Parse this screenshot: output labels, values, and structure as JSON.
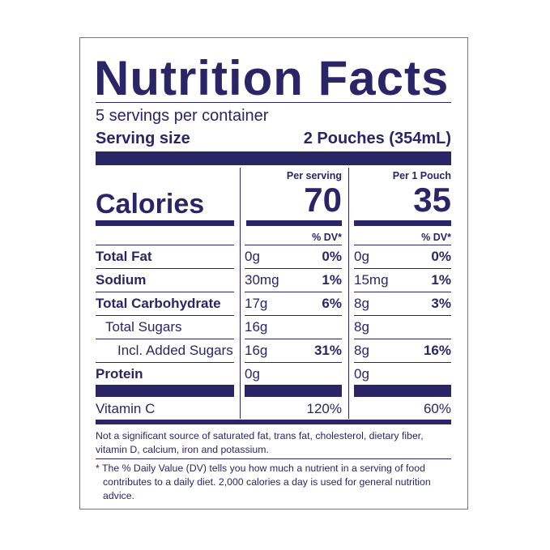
{
  "title": "Nutrition Facts",
  "servings": "5 servings per container",
  "serving_size": {
    "label": "Serving size",
    "value": "2 Pouches (354mL)"
  },
  "calories_label": "Calories",
  "columns": [
    {
      "heading": "Per serving",
      "calories": "70"
    },
    {
      "heading": "Per 1 Pouch",
      "calories": "35"
    }
  ],
  "dv_header": "% DV*",
  "rows": [
    {
      "name": "Total Fat",
      "bold": true,
      "indent": 0,
      "cells": [
        [
          "0g",
          "0%"
        ],
        [
          "0g",
          "0%"
        ]
      ]
    },
    {
      "name": "Sodium",
      "bold": true,
      "indent": 0,
      "cells": [
        [
          "30mg",
          "1%"
        ],
        [
          "15mg",
          "1%"
        ]
      ]
    },
    {
      "name": "Total Carbohydrate",
      "bold": true,
      "indent": 0,
      "cells": [
        [
          "17g",
          "6%"
        ],
        [
          "8g",
          "3%"
        ]
      ]
    },
    {
      "name": "Total Sugars",
      "bold": false,
      "indent": 1,
      "cells": [
        [
          "16g"
        ],
        [
          "8g"
        ]
      ]
    },
    {
      "name": "Incl. Added Sugars",
      "bold": false,
      "indent": 2,
      "cells": [
        [
          "16g",
          "31%"
        ],
        [
          "8g",
          "16%"
        ]
      ]
    },
    {
      "name": "Protein",
      "bold": true,
      "indent": 0,
      "cells": [
        [
          "0g"
        ],
        [
          "0g"
        ]
      ]
    }
  ],
  "vitamins": [
    {
      "name": "Vitamin C",
      "cells": [
        "120%",
        "60%"
      ]
    }
  ],
  "footnote": "Not a significant source of saturated fat, trans fat, cholesterol, dietary fiber, vitamin D, calcium, iron and potassium.",
  "dv_note": "* The % Daily Value (DV) tells you how much a nutrient in a serving of food contributes to a daily diet. 2,000 calories a day is used for general nutrition advice."
}
